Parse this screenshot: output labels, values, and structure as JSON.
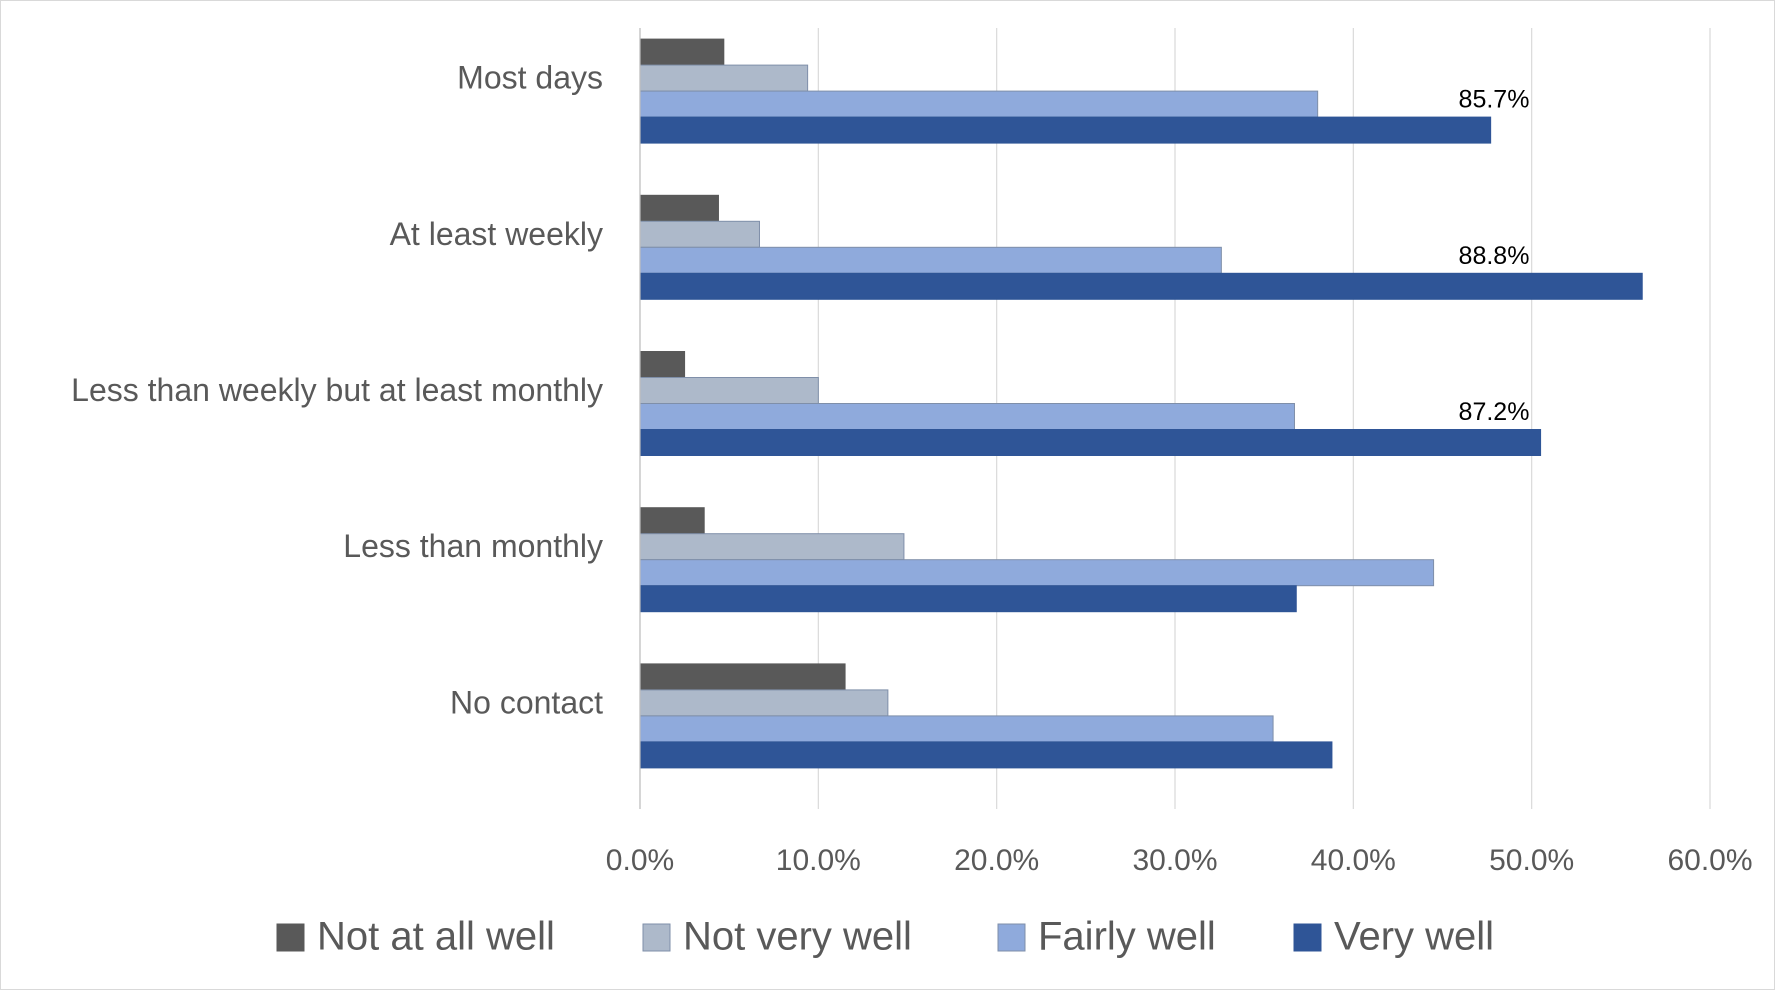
{
  "chart_data": {
    "type": "hbar",
    "categories": [
      "Most days",
      "At least weekly",
      "Less than weekly but at least monthly",
      "Less than monthly",
      "No contact"
    ],
    "series": [
      {
        "name": "Not at all well",
        "color": "#595959",
        "values": [
          4.7,
          4.4,
          2.5,
          3.6,
          11.5
        ]
      },
      {
        "name": "Not very well",
        "color": "#adb9ca",
        "values": [
          9.4,
          6.7,
          10.0,
          14.8,
          13.9
        ]
      },
      {
        "name": "Fairly well",
        "color": "#8faadc",
        "values": [
          38.0,
          32.6,
          36.7,
          44.5,
          35.5
        ]
      },
      {
        "name": "Very well",
        "color": "#2f5597",
        "values": [
          47.7,
          56.2,
          50.5,
          36.8,
          38.8
        ]
      }
    ],
    "annotations": [
      "85.7%",
      "88.8%",
      "87.2%",
      null,
      null
    ],
    "xlim": [
      0,
      60
    ],
    "xticks": [
      {
        "value": 0,
        "label": "0.0%"
      },
      {
        "value": 10,
        "label": "10.0%"
      },
      {
        "value": 20,
        "label": "20.0%"
      },
      {
        "value": 30,
        "label": "30.0%"
      },
      {
        "value": 40,
        "label": "40.0%"
      },
      {
        "value": 50,
        "label": "50.0%"
      },
      {
        "value": 60,
        "label": "60.0%"
      }
    ],
    "grid": true,
    "legend": "bottom"
  }
}
